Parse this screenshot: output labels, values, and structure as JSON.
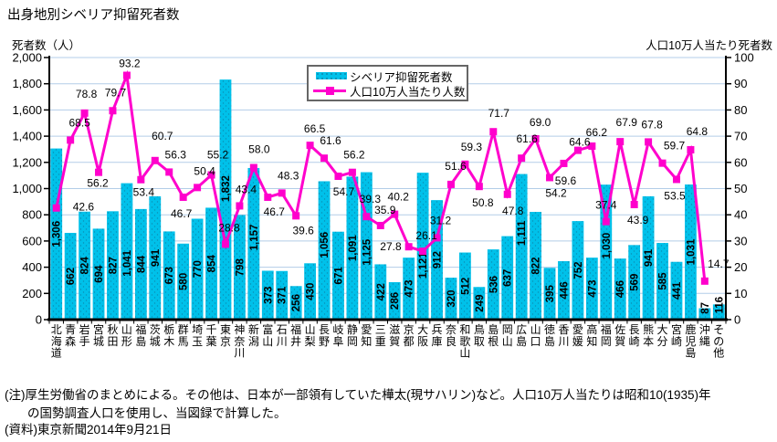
{
  "title": "出身地別シベリア抑留死者数",
  "left_axis_label": "死者数（人）",
  "right_axis_label": "人口10万人当たり死者数",
  "legend": {
    "bar": "シベリア抑留死者数",
    "line": "人口10万人当たり人数"
  },
  "notes": {
    "line1": "(注)厚生労働省のまとめによる。その他は、日本が一部領有していた樺太(現サハリン)など。人口10万人当たりは昭和10(1935)年",
    "line2": "の国勢調査人口を使用し、当図録で計算した。",
    "line3": "(資料)東京新聞2014年9月21日"
  },
  "colors": {
    "bar": "#00c1ea",
    "bar_dot": "#0a8fb4",
    "line": "#ff00cc",
    "grid": "#b3cde8",
    "axis": "#000000"
  },
  "chart_data": {
    "type": "bar+line",
    "categories": [
      "北海道",
      "青森",
      "岩手",
      "宮城",
      "秋田",
      "山形",
      "福島",
      "茨城",
      "栃木",
      "群馬",
      "埼玉",
      "千葉",
      "東京",
      "神奈川",
      "新潟",
      "富山",
      "石川",
      "福井",
      "山梨",
      "長野",
      "岐阜",
      "静岡",
      "愛知",
      "三重",
      "滋賀",
      "京都",
      "大阪",
      "兵庫",
      "奈良",
      "和歌山",
      "鳥取",
      "島根",
      "岡山",
      "広島",
      "山口",
      "徳島",
      "香川",
      "愛媛",
      "高知",
      "福岡",
      "佐賀",
      "長崎",
      "熊本",
      "大分",
      "宮崎",
      "鹿児島",
      "沖縄",
      "その他"
    ],
    "series": [
      {
        "name": "シベリア抑留死者数",
        "type": "bar",
        "axis": "left",
        "values": [
          1306,
          662,
          824,
          694,
          827,
          1041,
          844,
          941,
          673,
          580,
          770,
          854,
          1832,
          798,
          1157,
          373,
          371,
          256,
          430,
          1056,
          671,
          1091,
          1125,
          422,
          286,
          473,
          1121,
          912,
          320,
          512,
          249,
          536,
          637,
          1111,
          822,
          395,
          446,
          752,
          473,
          1030,
          466,
          569,
          941,
          585,
          441,
          1031,
          87,
          116
        ]
      },
      {
        "name": "人口10万人当たり人数",
        "type": "line",
        "axis": "right",
        "values": [
          42.6,
          68.5,
          78.8,
          56.2,
          79.7,
          93.2,
          53.4,
          60.7,
          56.3,
          46.7,
          50.4,
          55.2,
          28.8,
          43.4,
          58.0,
          46.7,
          48.3,
          39.6,
          66.5,
          61.6,
          54.7,
          56.2,
          39.3,
          35.9,
          40.2,
          27.8,
          26.1,
          31.2,
          51.6,
          59.3,
          50.8,
          71.7,
          47.8,
          61.6,
          69.0,
          54.2,
          59.6,
          64.6,
          66.2,
          37.4,
          67.9,
          43.9,
          67.8,
          59.7,
          53.5,
          64.8,
          14.7,
          null
        ]
      }
    ],
    "left_axis": {
      "min": 0,
      "max": 2000,
      "step": 200
    },
    "right_axis": {
      "min": 0,
      "max": 100,
      "step": 10
    },
    "grid": true,
    "legend_position": "top-center-inside",
    "line_label_side": [
      "r",
      "a",
      "a",
      "b",
      "a",
      "a",
      "b",
      "a",
      "a",
      "b",
      "a",
      "a",
      "a",
      "a",
      "a",
      "b",
      "a",
      "b",
      "a",
      "a",
      "b",
      "a",
      "a",
      "a",
      "a",
      "l",
      "a",
      "a",
      "a",
      "a",
      "b",
      "a",
      "b",
      "a",
      "a",
      "b",
      "b",
      "a",
      "a",
      "a",
      "a",
      "b",
      "a",
      "a",
      "b",
      "a",
      "a",
      ""
    ],
    "line_label_offset": {
      "0": [
        10,
        -1
      ],
      "1": [
        8,
        -4
      ],
      "2": [
        0,
        -6
      ],
      "3": [
        -1,
        -4
      ],
      "4": [
        1,
        -5
      ],
      "5": [
        1,
        2
      ],
      "6": [
        3,
        -2
      ],
      "7": [
        6,
        -12
      ],
      "8": [
        5,
        -4
      ],
      "9": [
        -2,
        2
      ],
      "10": [
        6,
        -3
      ],
      "11": [
        5,
        -7
      ],
      "12": [
        2,
        -3
      ],
      "13": [
        5,
        -3
      ],
      "14": [
        4,
        -5
      ],
      "15": [
        7,
        0
      ],
      "16": [
        5,
        -4
      ],
      "17": [
        8,
        0
      ],
      "18": [
        3,
        -3
      ],
      "19": [
        5,
        -4
      ],
      "20": [
        6,
        1
      ],
      "21": [
        0,
        -4
      ],
      "22": [
        2,
        -4
      ],
      "23": [
        3,
        -2
      ],
      "24": [
        2,
        -4
      ],
      "25": [
        0,
        0
      ],
      "26": [
        2,
        -2
      ],
      "27": [
        2,
        -4
      ],
      "28": [
        3,
        -5
      ],
      "29": [
        5,
        -4
      ],
      "30": [
        4,
        2
      ],
      "31": [
        4,
        -5
      ],
      "32": [
        6,
        2
      ],
      "33": [
        4,
        -6
      ],
      "34": [
        3,
        -3
      ],
      "35": [
        7,
        1
      ],
      "36": [
        2,
        3
      ],
      "37": [
        0,
        6
      ],
      "38": [
        3,
        0
      ],
      "39": [
        -2,
        -3
      ],
      "40": [
        5,
        -6
      ],
      "41": [
        4,
        1
      ],
      "42": [
        2,
        -4
      ],
      "43": [
        11,
        -4
      ],
      "44": [
        -2,
        2
      ],
      "45": [
        5,
        -5
      ],
      "46": [
        13,
        -4
      ]
    },
    "bar_label_offset": {
      "5": 13,
      "12": -12,
      "14": -7,
      "19": -6,
      "22": 7,
      "26": 21,
      "33": -15,
      "39": -7
    }
  }
}
